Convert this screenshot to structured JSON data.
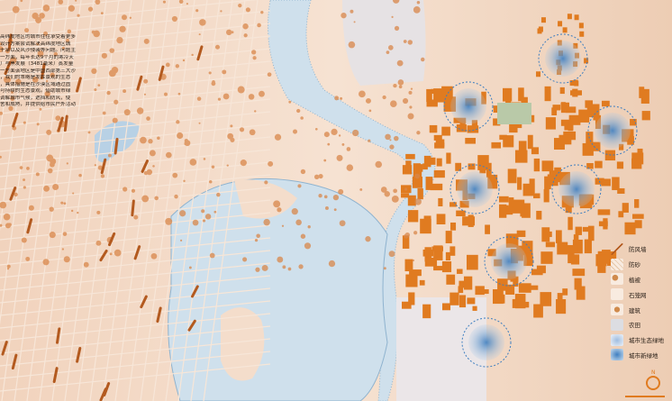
{
  "intro_text": [
    "高纬度地区的城市往往承受着更多",
    "设计方案尝试解决高纬度地区城",
    "干旱以及风沙侵袭等问题。问题主",
    "一方面，每年长达9个月的寒冷天",
    "）与黑发展（3481毫米）蒸发量",
    "一方面该地区是中国西部第三大沙",
    "，我们的策略是发挥景观的生态",
    "，具体措施是在沙漠区域通过固",
    "可持续的生态景观。借助城市绿",
    "调解城市气候，遮挡和防风，使",
    "舍和成熟，并提供给市民户外活动"
  ],
  "legend": [
    {
      "label": "防风墙",
      "icon": "windbreak-line"
    },
    {
      "label": "防砂",
      "icon": "sand-barrier-grid"
    },
    {
      "label": "植被",
      "icon": "vegetation-dots"
    },
    {
      "label": "石笼网",
      "icon": "gabion-curve"
    },
    {
      "label": "建筑",
      "icon": "building-blocks"
    },
    {
      "label": "农田",
      "icon": "farmland"
    },
    {
      "label": "城市生态绿地",
      "icon": "eco-green-space"
    },
    {
      "label": "城市新绿地",
      "icon": "new-green-space"
    }
  ],
  "compass_label": "N",
  "colors": {
    "terrain": "#f3d9c4",
    "building": "#e07b20",
    "water": "#cfe0ec",
    "windbreak": "#b35a1f",
    "green_space": "#3f7fc0",
    "farmland": "#e6e2e4"
  }
}
